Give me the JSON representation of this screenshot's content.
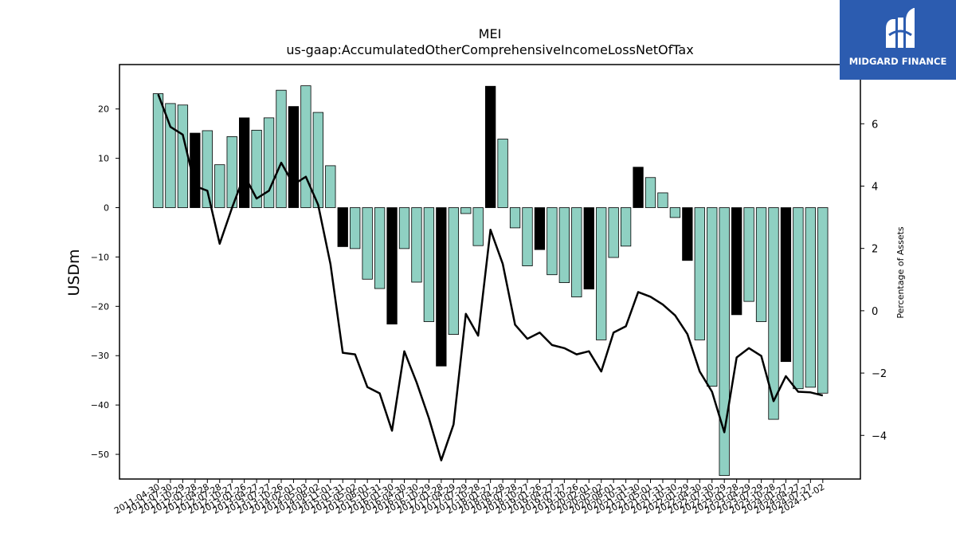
{
  "brand": {
    "name": "MIDGARD FINANCE",
    "logo_color": "#2c5cb0"
  },
  "chart_data": {
    "type": "bar",
    "title": "MEI",
    "subtitle": "us-gaap:AccumulatedOtherComprehensiveIncomeLossNetOfTax",
    "ylabel": "USDm",
    "y2label": "Percentage of Assets",
    "ylim": [
      -55,
      29
    ],
    "y2lim": [
      -5.4,
      7.9
    ],
    "yticks": [
      20,
      10,
      0,
      -10,
      -20,
      -30,
      -40,
      -50
    ],
    "y2ticks": [
      6,
      4,
      2,
      0,
      -2,
      -4
    ],
    "categories": [
      "2011-04-30",
      "2011-07-30",
      "2011-10-29",
      "2012-01-28",
      "2012-04-28",
      "2012-07-28",
      "2012-10-27",
      "2013-01-26",
      "2013-04-27",
      "2013-07-27",
      "2013-10-26",
      "2014-02-01",
      "2014-05-03",
      "2014-08-02",
      "2014-11-01",
      "2015-01-31",
      "2015-05-02",
      "2015-08-01",
      "2015-10-31",
      "2016-01-30",
      "2016-04-30",
      "2016-07-30",
      "2016-10-29",
      "2017-01-28",
      "2017-04-29",
      "2017-07-29",
      "2017-10-28",
      "2018-01-27",
      "2018-04-28",
      "2018-07-28",
      "2018-10-27",
      "2019-01-26",
      "2019-04-27",
      "2019-07-27",
      "2019-10-26",
      "2020-02-01",
      "2020-05-02",
      "2020-08-01",
      "2020-10-31",
      "2021-01-30",
      "2021-05-01",
      "2021-07-31",
      "2021-10-30",
      "2022-01-29",
      "2022-04-30",
      "2022-07-30",
      "2022-10-29",
      "2023-01-28",
      "2023-04-29",
      "2023-07-29",
      "2023-10-28",
      "2024-01-27",
      "2024-04-27",
      "2024-07-27",
      "2024-11-02"
    ],
    "series": [
      {
        "role": "bars",
        "values": [
          23.1,
          21.1,
          20.8,
          15.1,
          15.6,
          8.7,
          14.4,
          18.2,
          15.7,
          18.2,
          23.8,
          20.5,
          24.7,
          19.3,
          8.5,
          -7.9,
          -8.3,
          -14.5,
          -16.4,
          -23.6,
          -8.3,
          -15.1,
          -23.1,
          -32.1,
          -25.7,
          -1.2,
          -7.7,
          24.6,
          13.9,
          -4.1,
          -11.8,
          -8.5,
          -13.6,
          -15.2,
          -18.1,
          -16.5,
          -26.8,
          -10.1,
          -7.8,
          8.2,
          6.1,
          3.0,
          -2.0,
          -10.7,
          -26.8,
          -36.2,
          -54.3,
          -21.7,
          -19.0,
          -23.1,
          -42.9,
          -31.2,
          -36.7,
          -36.4,
          -37.6
        ],
        "highlight": [
          false,
          false,
          false,
          true,
          false,
          false,
          false,
          true,
          false,
          false,
          false,
          true,
          false,
          false,
          false,
          true,
          false,
          false,
          false,
          true,
          false,
          false,
          false,
          true,
          false,
          false,
          false,
          true,
          false,
          false,
          false,
          true,
          false,
          false,
          false,
          true,
          false,
          false,
          false,
          true,
          false,
          false,
          false,
          true,
          false,
          false,
          false,
          true,
          false,
          false,
          false,
          true,
          false,
          false,
          false
        ]
      },
      {
        "role": "line",
        "axis": "right",
        "values": [
          6.95,
          5.9,
          5.65,
          4.0,
          3.85,
          2.15,
          3.3,
          4.35,
          3.6,
          3.85,
          4.75,
          4.05,
          4.3,
          3.4,
          1.5,
          -1.35,
          -1.4,
          -2.45,
          -2.65,
          -3.85,
          -1.3,
          -2.3,
          -3.45,
          -4.8,
          -3.65,
          -0.1,
          -0.8,
          2.6,
          1.5,
          -0.45,
          -0.9,
          -0.7,
          -1.1,
          -1.2,
          -1.4,
          -1.3,
          -1.95,
          -0.7,
          -0.5,
          0.6,
          0.45,
          0.2,
          -0.15,
          -0.75,
          -1.95,
          -2.6,
          -3.9,
          -1.5,
          -1.2,
          -1.45,
          -2.9,
          -2.1,
          -2.6,
          -2.62,
          -2.72
        ]
      }
    ],
    "colors": {
      "bar": "#8fd0c2",
      "bar_highlight": "#000000",
      "line": "#000000"
    },
    "grid": false
  }
}
